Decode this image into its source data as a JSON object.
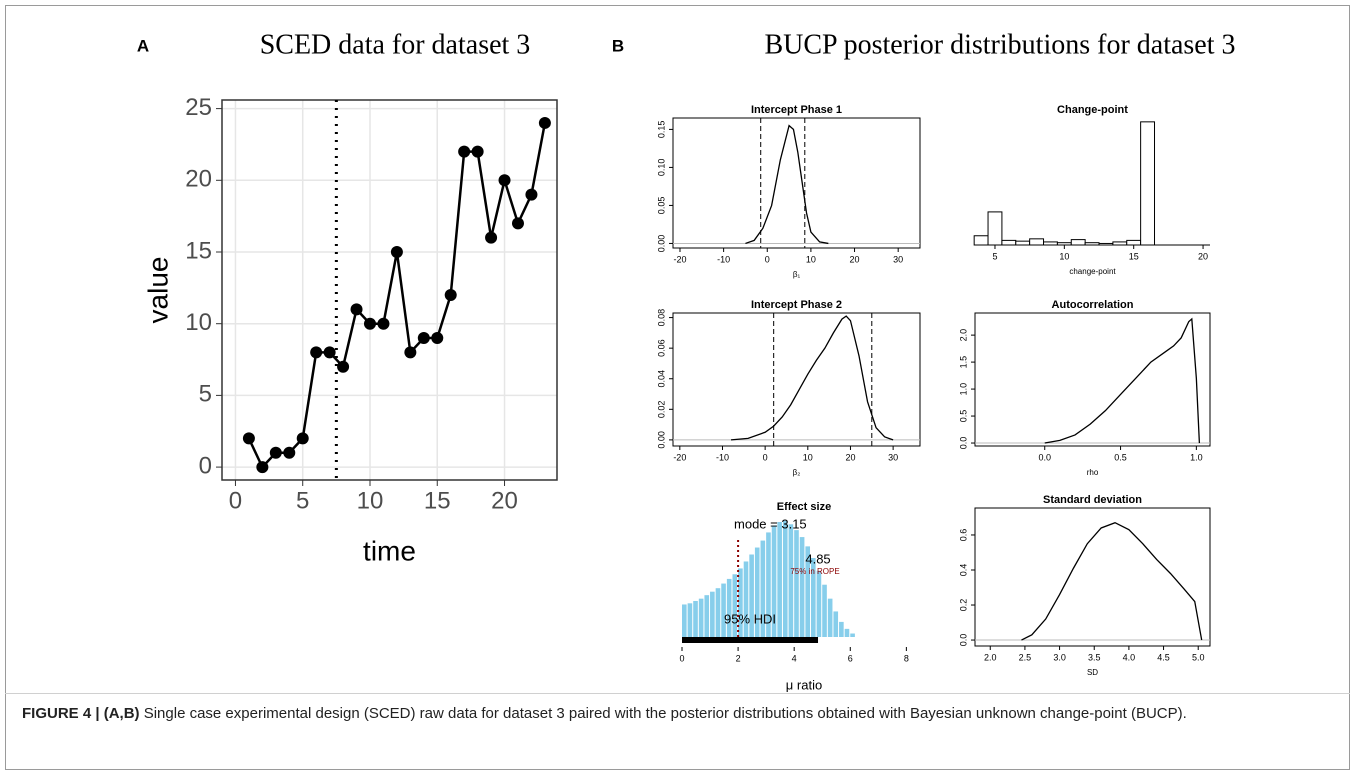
{
  "panels": [
    {
      "label": "A",
      "title": "SCED data for dataset 3"
    },
    {
      "label": "B",
      "title": "BUCP posterior distributions for dataset 3"
    }
  ],
  "chart_data": [
    {
      "type": "line",
      "xlabel": "time",
      "ylabel": "value",
      "frame": true,
      "grid": true,
      "color": "#000000",
      "x": [
        1,
        2,
        3,
        4,
        5,
        6,
        7,
        8,
        9,
        10,
        11,
        12,
        13,
        14,
        15,
        16,
        17,
        18,
        19,
        20,
        21,
        22,
        23
      ],
      "values": [
        2,
        0,
        1,
        1,
        2,
        8,
        8,
        7,
        11,
        10,
        10,
        15,
        8,
        9,
        9,
        12,
        22,
        22,
        16,
        20,
        17,
        19,
        24
      ],
      "xlim": [
        -1,
        23.9
      ],
      "ylim": [
        -0.9,
        25.6
      ],
      "xticks": [
        0,
        5,
        10,
        15,
        20
      ],
      "yticks": [
        0,
        5,
        10,
        15,
        20,
        25
      ],
      "vlines": [
        7.5
      ]
    },
    {
      "type": "density",
      "title": "Intercept Phase 1",
      "xlabel": "β₁",
      "frame": true,
      "color": "#000000",
      "x": [
        -5,
        -3,
        -1,
        1,
        3,
        5,
        6,
        7,
        8,
        9,
        10,
        12,
        14
      ],
      "values": [
        0,
        0.004,
        0.02,
        0.05,
        0.11,
        0.155,
        0.15,
        0.12,
        0.08,
        0.04,
        0.015,
        0.002,
        0
      ],
      "xlim": [
        -21.6,
        35
      ],
      "ylim": [
        -0.006,
        0.165
      ],
      "xticks": [
        -20,
        -10,
        0,
        10,
        20,
        30
      ],
      "yticks": [
        {
          "value": 0,
          "label": "0.00"
        },
        0.05,
        {
          "value": 0.1,
          "label": "0.10"
        },
        0.15
      ],
      "vlines": [
        -1.5,
        8.6
      ]
    },
    {
      "type": "histogram",
      "title": "Change-point",
      "xlabel": "change-point",
      "frame": false,
      "color": "#ffffff",
      "bins": [
        3.5,
        4.5,
        5.5,
        6.5,
        7.5,
        8.5,
        9.5,
        10.5,
        11.5,
        12.5,
        13.5,
        14.5,
        15.5,
        16.5
      ],
      "counts": [
        0.012,
        0.043,
        0.006,
        0.005,
        0.008,
        0.004,
        0.003,
        0.007,
        0.003,
        0.002,
        0.004,
        0.006,
        0.16
      ],
      "xlim": [
        3.56,
        20.5
      ],
      "ylim": [
        0,
        0.165
      ],
      "xticks": [
        5,
        10,
        15,
        20
      ]
    },
    {
      "type": "density",
      "title": "Intercept Phase 2",
      "xlabel": "β₂",
      "frame": true,
      "color": "#000000",
      "x": [
        -8,
        -4,
        0,
        2,
        4,
        6,
        8,
        10,
        12,
        14,
        16,
        18,
        19,
        20,
        22,
        24,
        26,
        28,
        30
      ],
      "values": [
        0,
        0.001,
        0.005,
        0.009,
        0.015,
        0.023,
        0.033,
        0.043,
        0.052,
        0.06,
        0.07,
        0.079,
        0.081,
        0.078,
        0.055,
        0.025,
        0.008,
        0.002,
        0
      ],
      "xlim": [
        -21.6,
        36.3
      ],
      "ylim": [
        -0.004,
        0.083
      ],
      "xticks": [
        -20,
        -10,
        0,
        10,
        20,
        30
      ],
      "yticks": [
        {
          "value": 0,
          "label": "0.00"
        },
        0.02,
        0.04,
        0.06,
        0.08
      ],
      "vlines": [
        2,
        25
      ]
    },
    {
      "type": "density",
      "title": "Autocorrelation",
      "xlabel": "rho",
      "frame": true,
      "color": "#000000",
      "x": [
        0,
        0.1,
        0.2,
        0.3,
        0.4,
        0.5,
        0.6,
        0.7,
        0.8,
        0.85,
        0.9,
        0.95,
        0.97,
        1.0,
        1.02
      ],
      "values": [
        0,
        0.05,
        0.15,
        0.35,
        0.6,
        0.9,
        1.2,
        1.5,
        1.7,
        1.8,
        1.95,
        2.25,
        2.3,
        1.2,
        0
      ],
      "xlim": [
        -0.46,
        1.09
      ],
      "ylim": [
        -0.055,
        2.41
      ],
      "xticks": [
        {
          "value": 0,
          "label": "0.0"
        },
        0.5,
        {
          "value": 1,
          "label": "1.0"
        }
      ],
      "yticks": [
        {
          "value": 0,
          "label": "0.0"
        },
        0.5,
        {
          "value": 1,
          "label": "1.0"
        },
        1.5,
        {
          "value": 2,
          "label": "2.0"
        }
      ]
    },
    {
      "type": "histogram",
      "title": "Effect size",
      "xlabel": "μ ratio",
      "frame": false,
      "color": "#87ceeb",
      "bins": [
        0,
        0.2,
        0.4,
        0.6,
        0.8,
        1,
        1.2,
        1.4,
        1.6,
        1.8,
        2,
        2.2,
        2.4,
        2.6,
        2.8,
        3,
        3.2,
        3.4,
        3.6,
        3.8,
        4,
        4.2,
        4.4,
        4.6,
        4.8,
        5,
        5.2,
        5.4,
        5.6,
        5.8,
        6,
        6.2
      ],
      "counts": [
        0.28,
        0.29,
        0.31,
        0.33,
        0.36,
        0.39,
        0.42,
        0.46,
        0.5,
        0.54,
        0.59,
        0.65,
        0.71,
        0.77,
        0.83,
        0.9,
        0.96,
        0.99,
        1.0,
        0.97,
        0.92,
        0.86,
        0.78,
        0.68,
        0.57,
        0.45,
        0.33,
        0.22,
        0.13,
        0.07,
        0.03
      ],
      "xlim": [
        0,
        8.7
      ],
      "ylim": [
        0,
        1.05
      ],
      "xticks": [
        0,
        2,
        4,
        6,
        8
      ],
      "mode_label": "mode = 3.15",
      "mode": 3.15,
      "hdi": [
        0,
        4.85
      ],
      "hdi_label": "95% HDI",
      "rope_line": 2,
      "rope_label": "75% in ROPE"
    },
    {
      "type": "density",
      "title": "Standard deviation",
      "xlabel": "SD",
      "frame": true,
      "color": "#000000",
      "x": [
        2.45,
        2.6,
        2.8,
        3.0,
        3.2,
        3.4,
        3.6,
        3.8,
        4.0,
        4.2,
        4.4,
        4.6,
        4.8,
        4.95,
        5.05
      ],
      "values": [
        0,
        0.03,
        0.12,
        0.26,
        0.41,
        0.55,
        0.64,
        0.67,
        0.63,
        0.55,
        0.46,
        0.38,
        0.29,
        0.22,
        0
      ],
      "xlim": [
        1.78,
        5.17
      ],
      "ylim": [
        -0.034,
        0.754
      ],
      "xticks": [
        {
          "value": 2,
          "label": "2.0"
        },
        2.5,
        {
          "value": 3,
          "label": "3.0"
        },
        3.5,
        {
          "value": 4,
          "label": "4.0"
        },
        4.5,
        {
          "value": 5,
          "label": "5.0"
        }
      ],
      "yticks": [
        {
          "value": 0,
          "label": "0.0"
        },
        0.2,
        0.4,
        0.6
      ]
    }
  ],
  "caption": {
    "label": "FIGURE 4 | (A,B)",
    "text": "Single case experimental design (SCED) raw data for dataset 3 paired with the posterior distributions obtained with Bayesian unknown change-point (BUCP)."
  }
}
